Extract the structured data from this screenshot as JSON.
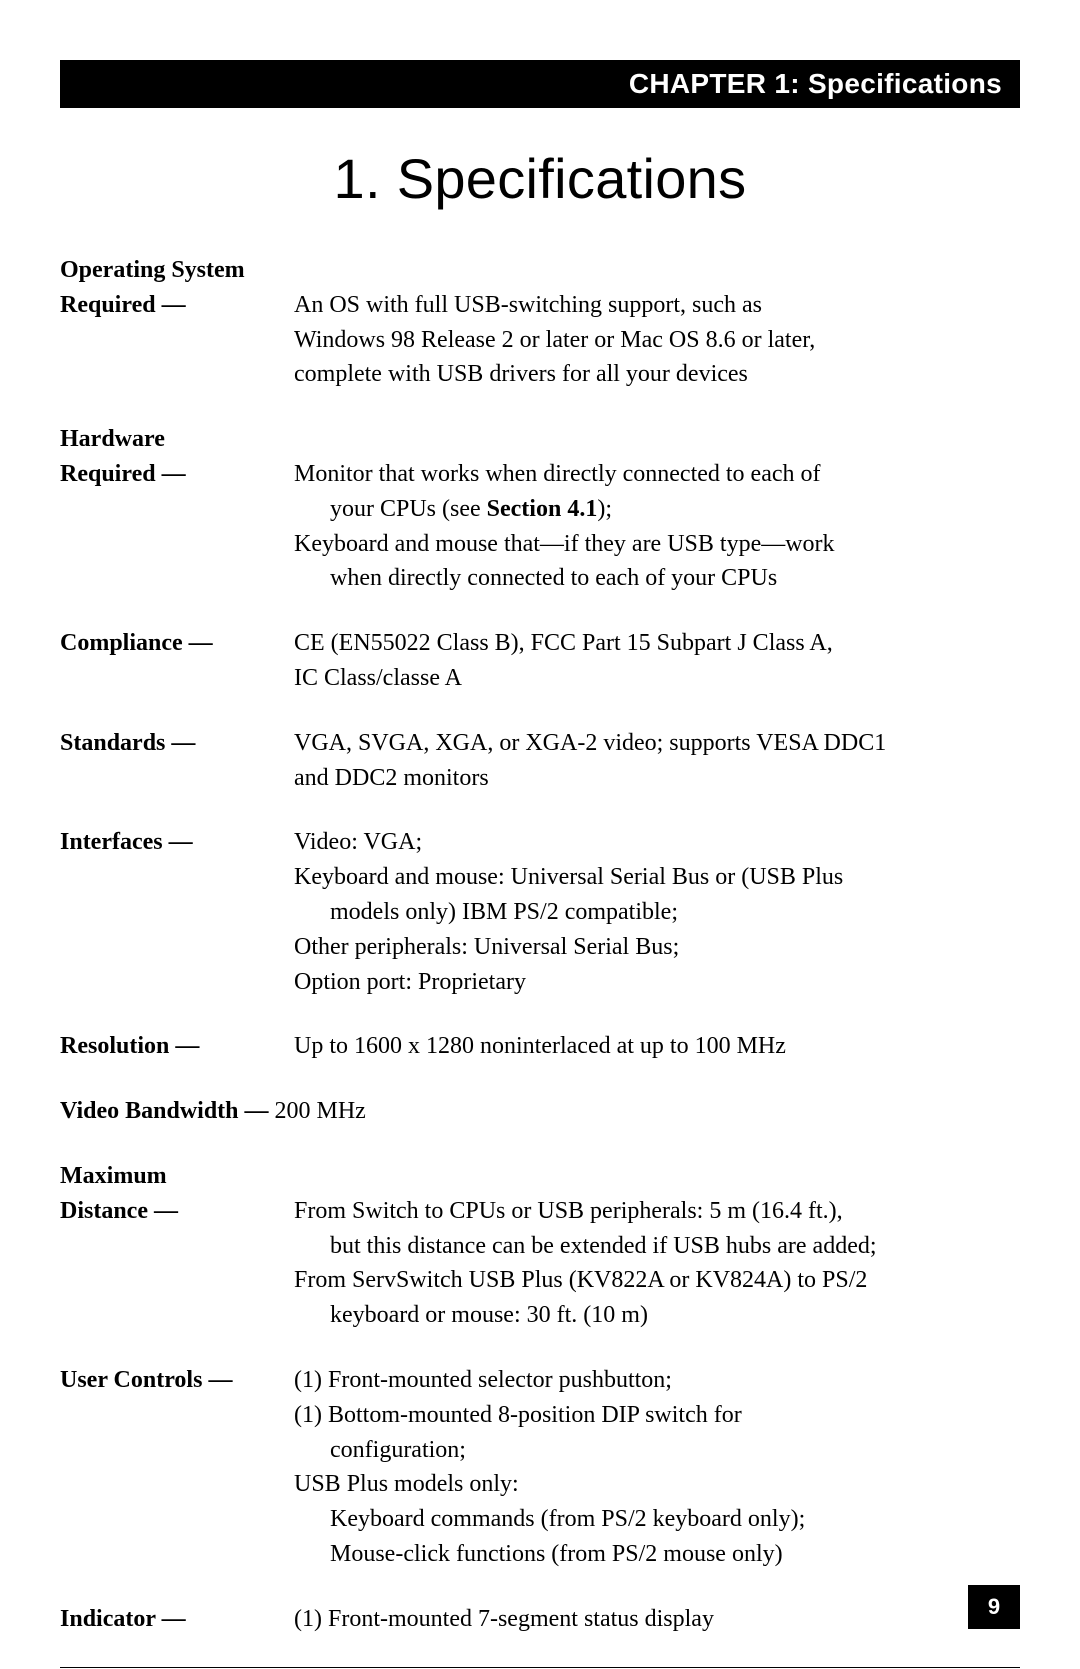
{
  "header": {
    "chapter_label": "CHAPTER 1: Specifications"
  },
  "title": "1. Specifications",
  "specs": [
    {
      "label_lines": [
        "Operating System",
        "Required —"
      ],
      "value_groups": [
        {
          "type": "plain",
          "text": "An OS with full USB-switching support, such as"
        },
        {
          "type": "plain",
          "text": "Windows 98 Release 2 or later or Mac OS 8.6 or later,"
        },
        {
          "type": "plain",
          "text": "complete with USB drivers for all your devices"
        }
      ]
    },
    {
      "label_lines": [
        "Hardware",
        "Required —"
      ],
      "value_groups": [
        {
          "type": "plain",
          "text": "Monitor that works when directly connected to each of"
        },
        {
          "type": "indent-bold",
          "pre": "your CPUs (see ",
          "bold": "Section 4.1",
          "post": ");"
        },
        {
          "type": "plain",
          "text": "Keyboard and mouse that—if they are USB type—work"
        },
        {
          "type": "indent",
          "text": "when directly connected to each of your CPUs"
        }
      ]
    },
    {
      "label_lines": [
        "Compliance —"
      ],
      "value_groups": [
        {
          "type": "plain",
          "text": "CE (EN55022 Class B), FCC Part 15 Subpart J Class A,"
        },
        {
          "type": "plain",
          "text": "IC Class/classe A"
        }
      ]
    },
    {
      "label_lines": [
        "Standards —"
      ],
      "value_groups": [
        {
          "type": "plain",
          "text": "VGA, SVGA, XGA, or XGA-2 video; supports VESA DDC1"
        },
        {
          "type": "plain",
          "text": "and DDC2 monitors"
        }
      ]
    },
    {
      "label_lines": [
        "Interfaces —"
      ],
      "value_groups": [
        {
          "type": "plain",
          "text": "Video: VGA;"
        },
        {
          "type": "plain",
          "text": "Keyboard and mouse: Universal Serial Bus or (USB Plus"
        },
        {
          "type": "indent",
          "text": "models only) IBM PS/2 compatible;"
        },
        {
          "type": "plain",
          "text": "Other peripherals: Universal Serial Bus;"
        },
        {
          "type": "plain",
          "text": "Option port: Proprietary"
        }
      ]
    },
    {
      "label_lines": [
        "Resolution —"
      ],
      "value_groups": [
        {
          "type": "plain",
          "text": "Up to 1600 x 1280 noninterlaced at up to 100 MHz"
        }
      ]
    },
    {
      "label_lines": [
        "Video Bandwidth — "
      ],
      "inline_value": "200 MHz"
    },
    {
      "label_lines": [
        "Maximum",
        "Distance —"
      ],
      "value_groups": [
        {
          "type": "plain",
          "text": "From Switch to CPUs or USB peripherals: 5 m (16.4 ft.),"
        },
        {
          "type": "indent",
          "text": "but this distance can be extended if USB hubs are added;"
        },
        {
          "type": "plain",
          "text": "From ServSwitch USB Plus (KV822A or KV824A) to PS/2"
        },
        {
          "type": "indent",
          "text": "keyboard or mouse: 30 ft. (10 m)"
        }
      ]
    },
    {
      "label_lines": [
        "User Controls —"
      ],
      "value_groups": [
        {
          "type": "plain",
          "text": "(1) Front-mounted selector pushbutton;"
        },
        {
          "type": "plain",
          "text": "(1) Bottom-mounted 8-position DIP switch for"
        },
        {
          "type": "indent",
          "text": "configuration;"
        },
        {
          "type": "plain",
          "text": "USB Plus models only:"
        },
        {
          "type": "indent",
          "text": "Keyboard commands (from PS/2 keyboard only);"
        },
        {
          "type": "indent",
          "text": "Mouse-click functions (from PS/2 mouse only)"
        }
      ]
    },
    {
      "label_lines": [
        "Indicator —"
      ],
      "value_groups": [
        {
          "type": "plain",
          "text": "(1) Front-mounted 7-segment status display"
        }
      ]
    }
  ],
  "page_number": "9"
}
